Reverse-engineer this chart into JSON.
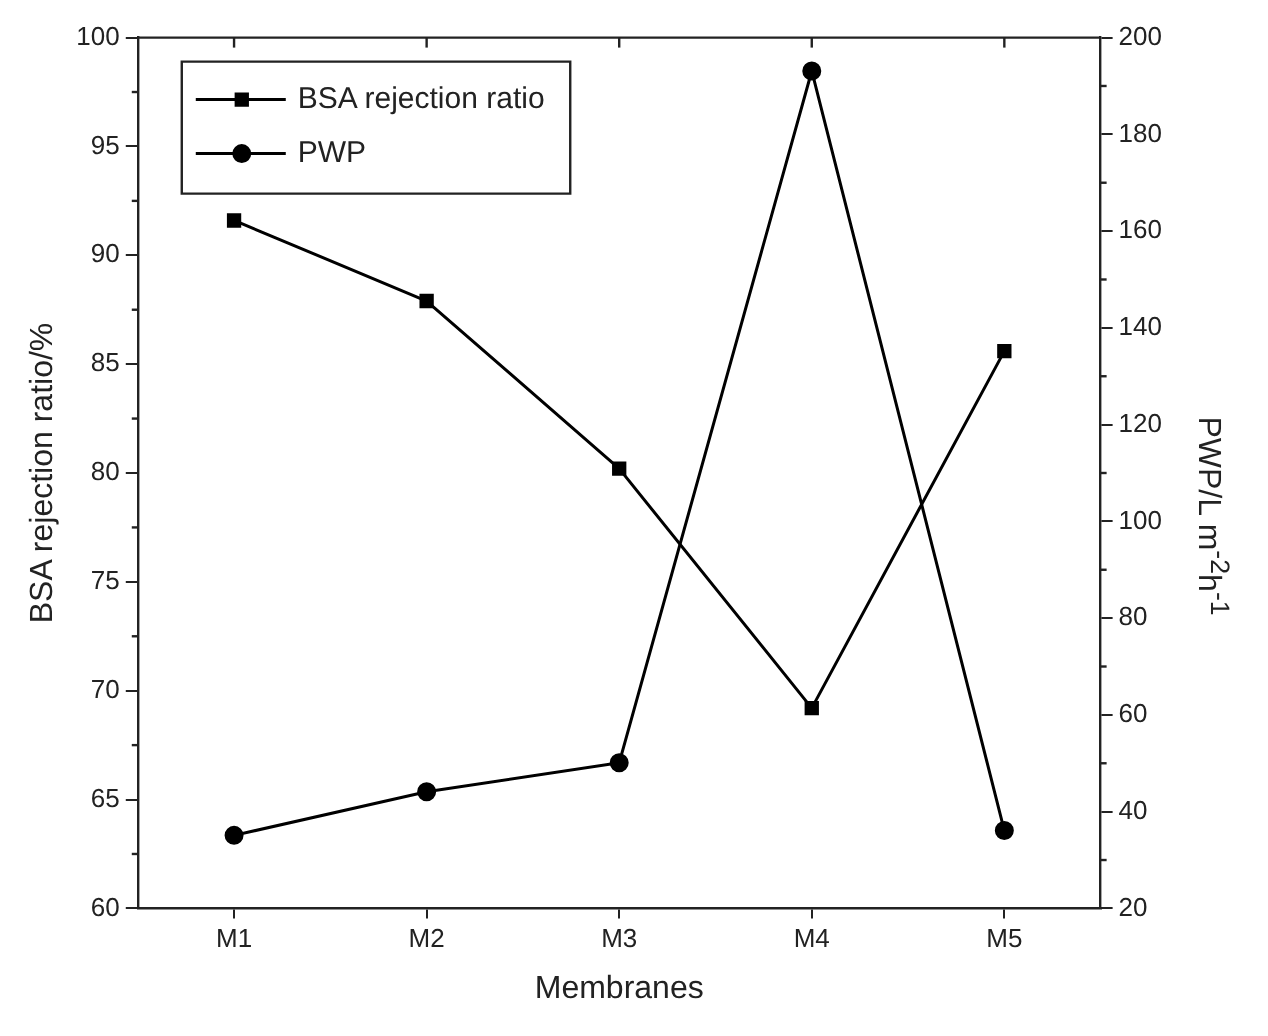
{
  "chart_data": {
    "type": "line",
    "xlabel": "Membranes",
    "ylabel": "BSA rejection ratio/%",
    "y2label": "PWP/L m$^{-2}$h$^{-1}$",
    "categories": [
      "M1",
      "M2",
      "M3",
      "M4",
      "M5"
    ],
    "series": [
      {
        "name": "BSA rejection ratio",
        "color": "#000000",
        "marker": "square",
        "values": [
          91.6,
          87.9,
          80.2,
          69.2,
          85.6
        ]
      },
      {
        "name": "PWP",
        "color": "#000000",
        "marker": "circle",
        "axis": "y2",
        "values": [
          35.1,
          44.1,
          50.1,
          193.1,
          36.1
        ]
      }
    ],
    "ylim": [
      60,
      100
    ],
    "yticks": [
      60,
      65,
      70,
      75,
      80,
      85,
      90,
      95,
      100
    ],
    "y2lim": [
      20,
      200
    ],
    "y2ticks": [
      20,
      40,
      60,
      80,
      100,
      120,
      140,
      160,
      180,
      200
    ],
    "grid": false,
    "legend": "top left",
    "line_style": "solid"
  }
}
